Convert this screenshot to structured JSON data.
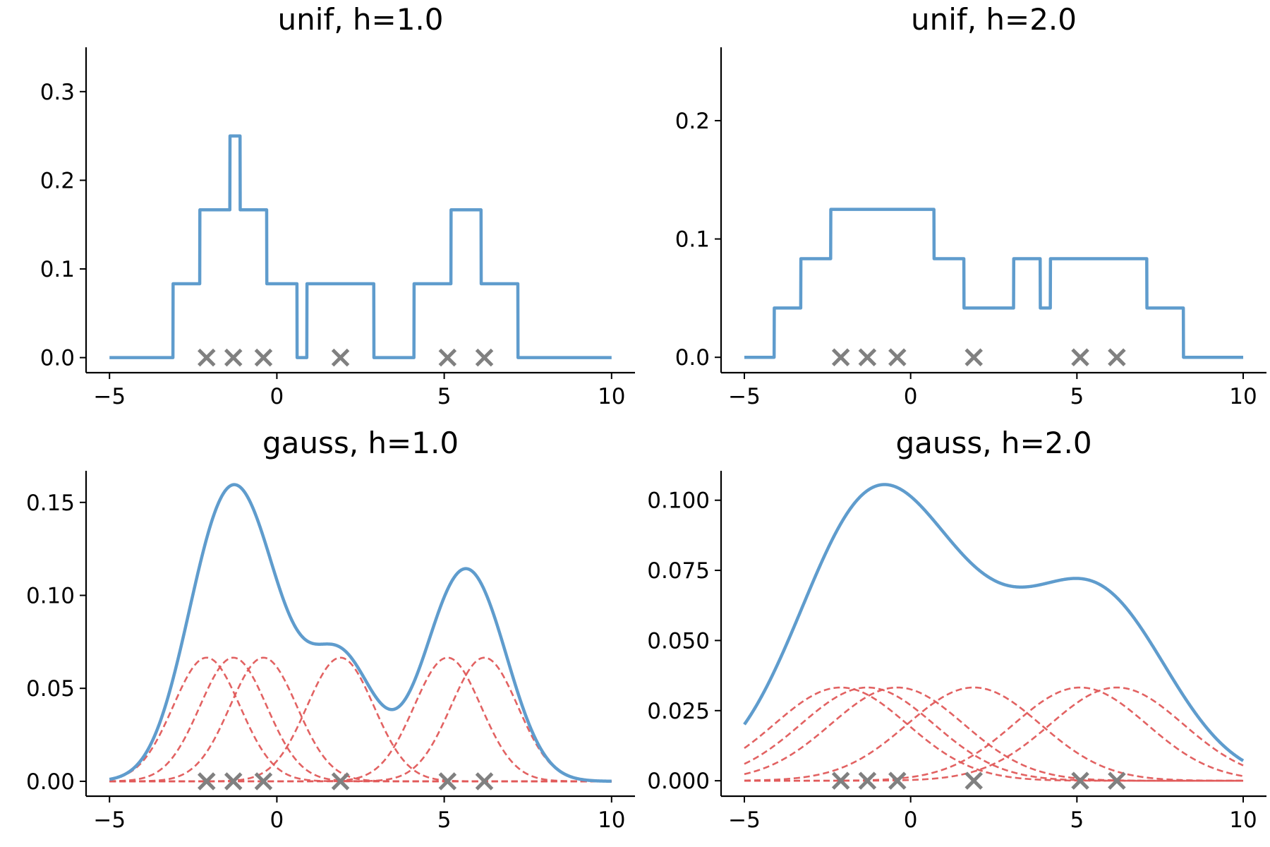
{
  "chart_data": [
    {
      "type": "line",
      "title": "unif, h=1.0",
      "kernel": "unif",
      "h": 1.0,
      "data_points": [
        -2.1,
        -1.3,
        -0.4,
        1.9,
        5.1,
        6.2
      ],
      "xlim": [
        -5.7,
        10.7
      ],
      "ylim": [
        -0.017,
        0.35
      ],
      "xticks": [
        -5,
        0,
        5,
        10
      ],
      "xticklabels": [
        "−5",
        "0",
        "5",
        "10"
      ],
      "yticks": [
        0.0,
        0.1,
        0.2,
        0.3
      ],
      "yticklabels": [
        "0.0",
        "0.1",
        "0.2",
        "0.3"
      ],
      "xlabel": "",
      "ylabel": "",
      "colors": {
        "density": "#5f9ccd",
        "marker": "#808080"
      }
    },
    {
      "type": "line",
      "title": "unif, h=2.0",
      "kernel": "unif",
      "h": 2.0,
      "data_points": [
        -2.1,
        -1.3,
        -0.4,
        1.9,
        5.1,
        6.2
      ],
      "xlim": [
        -5.7,
        10.7
      ],
      "ylim": [
        -0.013,
        0.262
      ],
      "xticks": [
        -5,
        0,
        5,
        10
      ],
      "xticklabels": [
        "−5",
        "0",
        "5",
        "10"
      ],
      "yticks": [
        0.0,
        0.1,
        0.2
      ],
      "yticklabels": [
        "0.0",
        "0.1",
        "0.2"
      ],
      "xlabel": "",
      "ylabel": "",
      "colors": {
        "density": "#5f9ccd",
        "marker": "#808080"
      }
    },
    {
      "type": "line",
      "title": "gauss, h=1.0",
      "kernel": "gauss",
      "h": 1.0,
      "data_points": [
        -2.1,
        -1.3,
        -0.4,
        1.9,
        5.1,
        6.2
      ],
      "xlim": [
        -5.7,
        10.7
      ],
      "ylim": [
        -0.008,
        0.167
      ],
      "xticks": [
        -5,
        0,
        5,
        10
      ],
      "xticklabels": [
        "−5",
        "0",
        "5",
        "10"
      ],
      "yticks": [
        0.0,
        0.05,
        0.1,
        0.15
      ],
      "yticklabels": [
        "0.00",
        "0.05",
        "0.10",
        "0.15"
      ],
      "xlabel": "",
      "ylabel": "",
      "colors": {
        "density": "#5f9ccd",
        "kernels": "#e05a5a",
        "marker": "#808080"
      }
    },
    {
      "type": "line",
      "title": "gauss, h=2.0",
      "kernel": "gauss",
      "h": 2.0,
      "data_points": [
        -2.1,
        -1.3,
        -0.4,
        1.9,
        5.1,
        6.2
      ],
      "xlim": [
        -5.7,
        10.7
      ],
      "ylim": [
        -0.0055,
        0.1105
      ],
      "xticks": [
        -5,
        0,
        5,
        10
      ],
      "xticklabels": [
        "−5",
        "0",
        "5",
        "10"
      ],
      "yticks": [
        0.0,
        0.025,
        0.05,
        0.075,
        0.1
      ],
      "yticklabels": [
        "0.000",
        "0.025",
        "0.050",
        "0.075",
        "0.100"
      ],
      "xlabel": "",
      "ylabel": "",
      "colors": {
        "density": "#5f9ccd",
        "kernels": "#e05a5a",
        "marker": "#808080"
      }
    }
  ]
}
